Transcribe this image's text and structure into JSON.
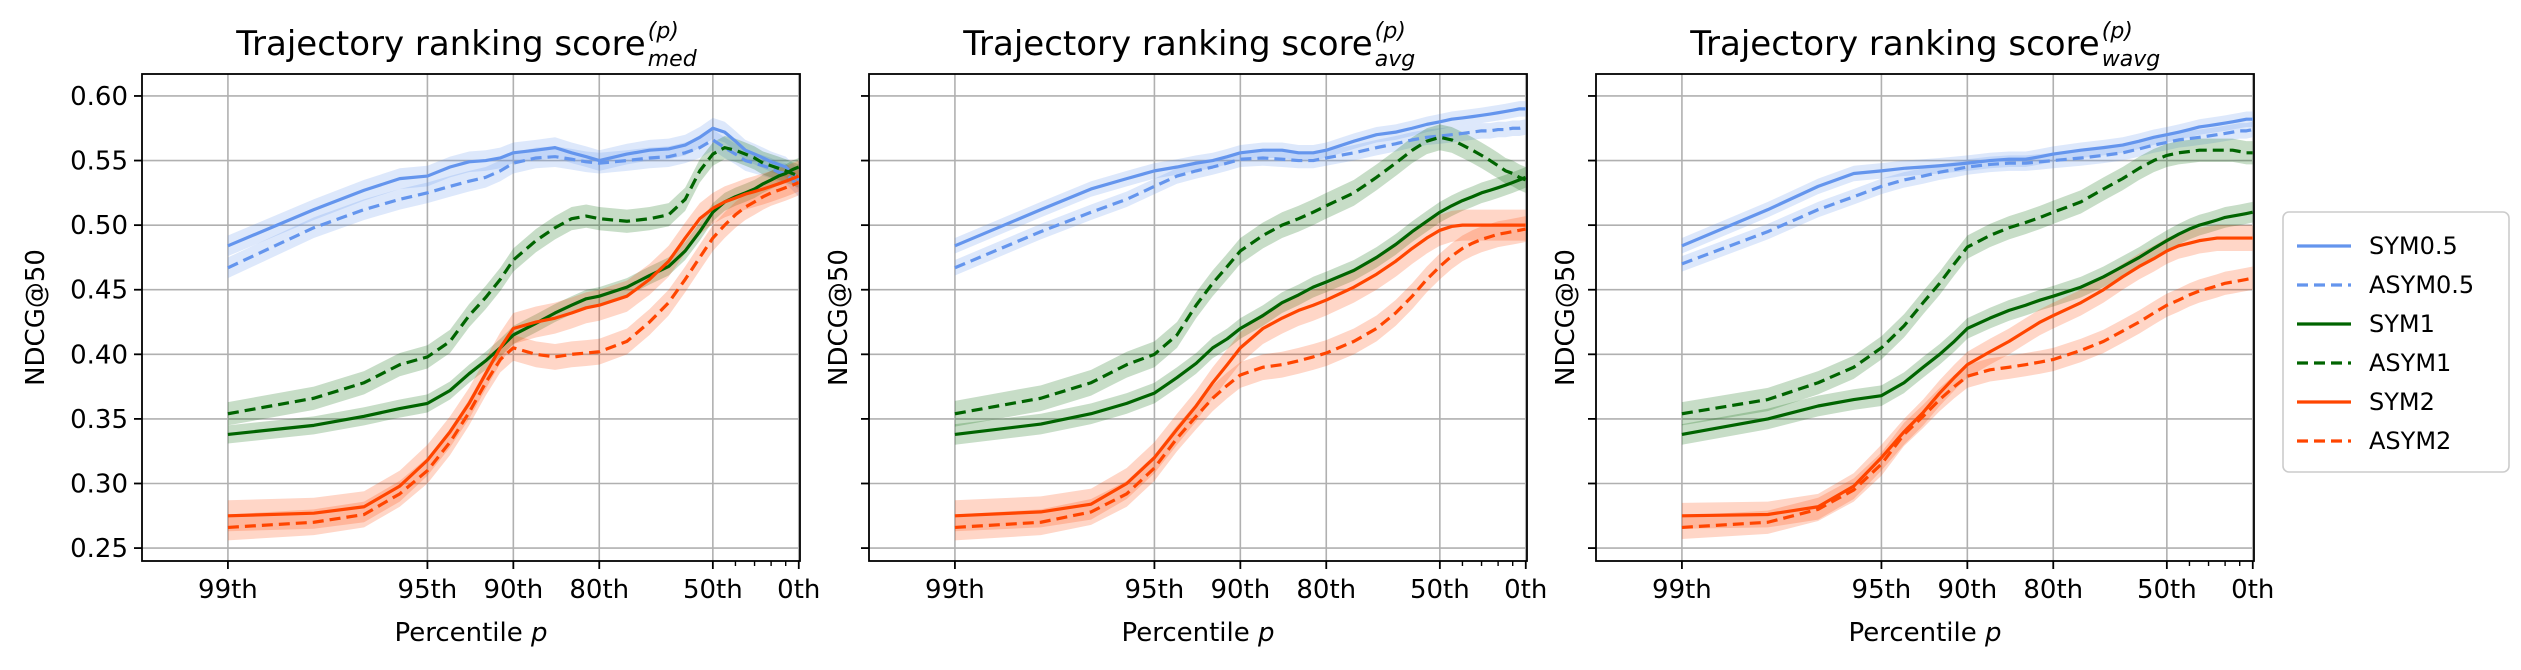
{
  "chart_data": [
    {
      "type": "line",
      "title": "Trajectory ranking score",
      "title_sup": "(p)",
      "title_sub": "med",
      "xlabel": "Percentile",
      "xlabel_var": "p",
      "ylabel": "NDCG@50",
      "xlim": [
        99.5,
        -1
      ],
      "ylim": [
        0.24,
        0.617
      ],
      "x_ticks": [
        99,
        95,
        90,
        80,
        50,
        0
      ],
      "x_tick_labels": [
        "99th",
        "95th",
        "90th",
        "80th",
        "50th",
        "0th"
      ],
      "y_ticks": [
        0.25,
        0.3,
        0.35,
        0.4,
        0.45,
        0.5,
        0.55,
        0.6
      ],
      "y_tick_labels": [
        "0.25",
        "0.30",
        "0.35",
        "0.40",
        "0.45",
        "0.50",
        "0.55",
        "0.60"
      ],
      "grid": true,
      "x": [
        99,
        98,
        97,
        96,
        95,
        94,
        93,
        92,
        91,
        90,
        88,
        86,
        84,
        82,
        80,
        75,
        70,
        65,
        60,
        55,
        50,
        45,
        40,
        35,
        30,
        25,
        20,
        15,
        10,
        5,
        0
      ],
      "series": [
        {
          "name": "SYM0.5",
          "color": "#6495ED",
          "dash": false,
          "values": [
            0.484,
            0.512,
            0.527,
            0.536,
            0.538,
            0.545,
            0.549,
            0.55,
            0.552,
            0.556,
            0.558,
            0.56,
            0.556,
            0.553,
            0.55,
            0.555,
            0.558,
            0.559,
            0.562,
            0.568,
            0.575,
            0.572,
            0.565,
            0.558,
            0.555,
            0.552,
            0.549,
            0.547,
            0.545,
            0.54,
            0.535
          ],
          "band": 0.008
        },
        {
          "name": "ASYM0.5",
          "color": "#6495ED",
          "dash": true,
          "values": [
            0.467,
            0.498,
            0.512,
            0.52,
            0.525,
            0.53,
            0.534,
            0.537,
            0.542,
            0.548,
            0.552,
            0.553,
            0.551,
            0.549,
            0.548,
            0.55,
            0.552,
            0.553,
            0.556,
            0.56,
            0.566,
            0.56,
            0.555,
            0.55,
            0.548,
            0.546,
            0.544,
            0.541,
            0.54,
            0.535,
            0.53
          ],
          "band": 0.008
        },
        {
          "name": "SYM1",
          "color": "#006400",
          "dash": false,
          "values": [
            0.338,
            0.345,
            0.352,
            0.358,
            0.362,
            0.372,
            0.385,
            0.395,
            0.405,
            0.415,
            0.424,
            0.432,
            0.438,
            0.443,
            0.445,
            0.452,
            0.461,
            0.468,
            0.48,
            0.495,
            0.51,
            0.518,
            0.522,
            0.525,
            0.528,
            0.532,
            0.535,
            0.538,
            0.54,
            0.543,
            0.545
          ],
          "band": 0.007
        },
        {
          "name": "ASYM1",
          "color": "#006400",
          "dash": true,
          "values": [
            0.354,
            0.366,
            0.378,
            0.392,
            0.398,
            0.41,
            0.43,
            0.444,
            0.458,
            0.473,
            0.488,
            0.498,
            0.505,
            0.507,
            0.505,
            0.503,
            0.505,
            0.508,
            0.52,
            0.542,
            0.555,
            0.56,
            0.558,
            0.555,
            0.552,
            0.548,
            0.546,
            0.544,
            0.542,
            0.54,
            0.538
          ],
          "band": 0.009
        },
        {
          "name": "SYM2",
          "color": "#FF4500",
          "dash": false,
          "values": [
            0.275,
            0.277,
            0.282,
            0.298,
            0.318,
            0.34,
            0.362,
            0.385,
            0.405,
            0.42,
            0.425,
            0.428,
            0.432,
            0.436,
            0.438,
            0.445,
            0.458,
            0.472,
            0.49,
            0.505,
            0.513,
            0.518,
            0.521,
            0.524,
            0.526,
            0.528,
            0.53,
            0.532,
            0.534,
            0.536,
            0.538
          ],
          "band": 0.012
        },
        {
          "name": "ASYM2",
          "color": "#FF4500",
          "dash": true,
          "values": [
            0.266,
            0.27,
            0.276,
            0.292,
            0.31,
            0.332,
            0.355,
            0.378,
            0.396,
            0.405,
            0.4,
            0.398,
            0.4,
            0.401,
            0.402,
            0.41,
            0.425,
            0.44,
            0.458,
            0.475,
            0.49,
            0.5,
            0.508,
            0.514,
            0.518,
            0.522,
            0.525,
            0.527,
            0.529,
            0.531,
            0.533
          ],
          "band": 0.01
        }
      ]
    },
    {
      "type": "line",
      "title": "Trajectory ranking score",
      "title_sup": "(p)",
      "title_sub": "avg",
      "xlabel": "Percentile",
      "xlabel_var": "p",
      "ylabel": "NDCG@50",
      "xlim": [
        99.5,
        -1
      ],
      "ylim": [
        0.24,
        0.617
      ],
      "x_ticks": [
        99,
        95,
        90,
        80,
        50,
        0
      ],
      "x_tick_labels": [
        "99th",
        "95th",
        "90th",
        "80th",
        "50th",
        "0th"
      ],
      "y_ticks": [
        0.25,
        0.3,
        0.35,
        0.4,
        0.45,
        0.5,
        0.55,
        0.6
      ],
      "y_tick_labels": [
        "0.25",
        "0.30",
        "0.35",
        "0.40",
        "0.45",
        "0.50",
        "0.55",
        "0.60"
      ],
      "grid": true,
      "x": [
        99,
        98,
        97,
        96,
        95,
        94,
        93,
        92,
        91,
        90,
        88,
        86,
        84,
        82,
        80,
        75,
        70,
        65,
        60,
        55,
        50,
        45,
        40,
        35,
        30,
        25,
        20,
        15,
        10,
        5,
        0
      ],
      "series": [
        {
          "name": "SYM0.5",
          "color": "#6495ED",
          "dash": false,
          "values": [
            0.484,
            0.512,
            0.528,
            0.536,
            0.542,
            0.545,
            0.548,
            0.55,
            0.553,
            0.556,
            0.558,
            0.558,
            0.556,
            0.556,
            0.558,
            0.565,
            0.57,
            0.572,
            0.575,
            0.578,
            0.58,
            0.582,
            0.583,
            0.584,
            0.585,
            0.586,
            0.587,
            0.588,
            0.589,
            0.59,
            0.59
          ],
          "band": 0.006
        },
        {
          "name": "ASYM0.5",
          "color": "#6495ED",
          "dash": true,
          "values": [
            0.467,
            0.495,
            0.51,
            0.52,
            0.53,
            0.538,
            0.542,
            0.545,
            0.548,
            0.551,
            0.552,
            0.551,
            0.55,
            0.55,
            0.552,
            0.556,
            0.56,
            0.563,
            0.566,
            0.568,
            0.569,
            0.57,
            0.571,
            0.572,
            0.573,
            0.573,
            0.574,
            0.574,
            0.575,
            0.575,
            0.576
          ],
          "band": 0.006
        },
        {
          "name": "SYM1",
          "color": "#006400",
          "dash": false,
          "values": [
            0.338,
            0.346,
            0.354,
            0.362,
            0.37,
            0.382,
            0.393,
            0.405,
            0.412,
            0.42,
            0.43,
            0.44,
            0.446,
            0.452,
            0.456,
            0.465,
            0.475,
            0.485,
            0.495,
            0.503,
            0.51,
            0.515,
            0.519,
            0.522,
            0.525,
            0.527,
            0.529,
            0.531,
            0.533,
            0.535,
            0.537
          ],
          "band": 0.008
        },
        {
          "name": "ASYM1",
          "color": "#006400",
          "dash": true,
          "values": [
            0.354,
            0.366,
            0.378,
            0.392,
            0.4,
            0.415,
            0.438,
            0.455,
            0.468,
            0.48,
            0.492,
            0.5,
            0.505,
            0.51,
            0.515,
            0.525,
            0.537,
            0.548,
            0.558,
            0.565,
            0.568,
            0.566,
            0.562,
            0.558,
            0.554,
            0.55,
            0.546,
            0.542,
            0.54,
            0.537,
            0.535
          ],
          "band": 0.01
        },
        {
          "name": "SYM2",
          "color": "#FF4500",
          "dash": false,
          "values": [
            0.275,
            0.278,
            0.284,
            0.3,
            0.32,
            0.342,
            0.36,
            0.378,
            0.392,
            0.405,
            0.42,
            0.428,
            0.434,
            0.438,
            0.442,
            0.452,
            0.462,
            0.472,
            0.482,
            0.49,
            0.496,
            0.499,
            0.5,
            0.5,
            0.5,
            0.5,
            0.5,
            0.5,
            0.5,
            0.5,
            0.5
          ],
          "band": 0.012
        },
        {
          "name": "ASYM2",
          "color": "#FF4500",
          "dash": true,
          "values": [
            0.266,
            0.27,
            0.278,
            0.292,
            0.312,
            0.335,
            0.352,
            0.366,
            0.376,
            0.384,
            0.39,
            0.392,
            0.395,
            0.398,
            0.401,
            0.41,
            0.42,
            0.432,
            0.445,
            0.458,
            0.468,
            0.476,
            0.482,
            0.486,
            0.489,
            0.491,
            0.493,
            0.494,
            0.495,
            0.496,
            0.497
          ],
          "band": 0.01
        }
      ]
    },
    {
      "type": "line",
      "title": "Trajectory ranking score",
      "title_sup": "(p)",
      "title_sub": "wavg",
      "xlabel": "Percentile",
      "xlabel_var": "p",
      "ylabel": "NDCG@50",
      "xlim": [
        99.5,
        -1
      ],
      "ylim": [
        0.24,
        0.617
      ],
      "x_ticks": [
        99,
        95,
        90,
        80,
        50,
        0
      ],
      "x_tick_labels": [
        "99th",
        "95th",
        "90th",
        "80th",
        "50th",
        "0th"
      ],
      "y_ticks": [
        0.25,
        0.3,
        0.35,
        0.4,
        0.45,
        0.5,
        0.55,
        0.6
      ],
      "y_tick_labels": [
        "0.25",
        "0.30",
        "0.35",
        "0.40",
        "0.45",
        "0.50",
        "0.55",
        "0.60"
      ],
      "grid": true,
      "x": [
        99,
        98,
        97,
        96,
        95,
        94,
        93,
        92,
        91,
        90,
        88,
        86,
        84,
        82,
        80,
        75,
        70,
        65,
        60,
        55,
        50,
        45,
        40,
        35,
        30,
        25,
        20,
        15,
        10,
        5,
        0
      ],
      "series": [
        {
          "name": "SYM0.5",
          "color": "#6495ED",
          "dash": false,
          "values": [
            0.484,
            0.512,
            0.53,
            0.54,
            0.542,
            0.544,
            0.545,
            0.546,
            0.547,
            0.548,
            0.55,
            0.551,
            0.551,
            0.553,
            0.555,
            0.558,
            0.56,
            0.562,
            0.565,
            0.568,
            0.57,
            0.572,
            0.574,
            0.576,
            0.577,
            0.578,
            0.579,
            0.58,
            0.581,
            0.582,
            0.582
          ],
          "band": 0.006
        },
        {
          "name": "ASYM0.5",
          "color": "#6495ED",
          "dash": true,
          "values": [
            0.47,
            0.495,
            0.512,
            0.522,
            0.53,
            0.535,
            0.538,
            0.541,
            0.543,
            0.545,
            0.547,
            0.548,
            0.548,
            0.549,
            0.55,
            0.552,
            0.554,
            0.556,
            0.559,
            0.562,
            0.564,
            0.566,
            0.567,
            0.568,
            0.569,
            0.57,
            0.571,
            0.572,
            0.573,
            0.573,
            0.574
          ],
          "band": 0.006
        },
        {
          "name": "SYM1",
          "color": "#006400",
          "dash": false,
          "values": [
            0.338,
            0.35,
            0.36,
            0.365,
            0.368,
            0.378,
            0.39,
            0.4,
            0.41,
            0.42,
            0.428,
            0.434,
            0.438,
            0.442,
            0.445,
            0.452,
            0.46,
            0.468,
            0.475,
            0.482,
            0.488,
            0.493,
            0.497,
            0.5,
            0.502,
            0.504,
            0.506,
            0.507,
            0.508,
            0.509,
            0.51
          ],
          "band": 0.008
        },
        {
          "name": "ASYM1",
          "color": "#006400",
          "dash": true,
          "values": [
            0.354,
            0.365,
            0.378,
            0.39,
            0.405,
            0.422,
            0.44,
            0.455,
            0.47,
            0.483,
            0.492,
            0.498,
            0.502,
            0.506,
            0.51,
            0.518,
            0.528,
            0.536,
            0.544,
            0.55,
            0.554,
            0.556,
            0.557,
            0.558,
            0.558,
            0.558,
            0.558,
            0.558,
            0.557,
            0.556,
            0.556
          ],
          "band": 0.009
        },
        {
          "name": "SYM2",
          "color": "#FF4500",
          "dash": false,
          "values": [
            0.275,
            0.276,
            0.282,
            0.298,
            0.32,
            0.34,
            0.355,
            0.37,
            0.382,
            0.392,
            0.402,
            0.41,
            0.418,
            0.425,
            0.43,
            0.44,
            0.45,
            0.46,
            0.468,
            0.474,
            0.48,
            0.484,
            0.486,
            0.488,
            0.489,
            0.49,
            0.49,
            0.49,
            0.49,
            0.49,
            0.49
          ],
          "band": 0.01
        },
        {
          "name": "ASYM2",
          "color": "#FF4500",
          "dash": true,
          "values": [
            0.266,
            0.27,
            0.28,
            0.295,
            0.315,
            0.338,
            0.352,
            0.365,
            0.375,
            0.383,
            0.388,
            0.39,
            0.392,
            0.394,
            0.396,
            0.403,
            0.41,
            0.418,
            0.425,
            0.432,
            0.438,
            0.442,
            0.446,
            0.449,
            0.451,
            0.453,
            0.455,
            0.456,
            0.457,
            0.458,
            0.459
          ],
          "band": 0.009
        }
      ]
    }
  ],
  "legend": {
    "placement": "right",
    "entries": [
      {
        "name": "SYM0.5",
        "color": "#6495ED",
        "dash": false
      },
      {
        "name": "ASYM0.5",
        "color": "#6495ED",
        "dash": true
      },
      {
        "name": "SYM1",
        "color": "#006400",
        "dash": false
      },
      {
        "name": "ASYM1",
        "color": "#006400",
        "dash": true
      },
      {
        "name": "SYM2",
        "color": "#FF4500",
        "dash": false
      },
      {
        "name": "ASYM2",
        "color": "#FF4500",
        "dash": true
      }
    ]
  }
}
